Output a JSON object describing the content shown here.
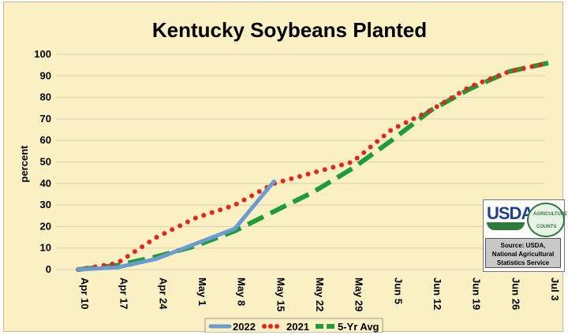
{
  "chart_data": {
    "type": "line",
    "title": "Kentucky Soybeans Planted",
    "xlabel": "",
    "ylabel": "percent",
    "ylim": [
      0,
      100
    ],
    "yticks": [
      0,
      10,
      20,
      30,
      40,
      50,
      60,
      70,
      80,
      90,
      100
    ],
    "xtick_labels": [
      "Apr 10",
      "Apr 17",
      "Apr 24",
      "May 1",
      "May 8",
      "May 15",
      "May 22",
      "May 29",
      "Jun 5",
      "Jun 12",
      "Jun 19",
      "Jun 26",
      "Jul 3"
    ],
    "grid": true,
    "legend": "bottom",
    "series": [
      {
        "name": "2022",
        "color": "#6a9bd1",
        "style": "solid",
        "x": [
          "Apr 10",
          "Apr 17",
          "Apr 24",
          "May 1",
          "May 8",
          "May 15"
        ],
        "values": [
          0,
          1,
          5,
          12,
          19,
          41
        ]
      },
      {
        "name": "2021",
        "color": "#e8231a",
        "style": "dotted",
        "x": [
          "Apr 10",
          "Apr 17",
          "Apr 24",
          "May 1",
          "May 8",
          "May 15",
          "May 22",
          "May 29",
          "Jun 5",
          "Jun 12",
          "Jun 19",
          "Jun 26",
          "Jul 3"
        ],
        "values": [
          0,
          3,
          15,
          24,
          30,
          40,
          45,
          50,
          65,
          74,
          85,
          92,
          96
        ]
      },
      {
        "name": "5-Yr Avg",
        "color": "#1e9c3a",
        "style": "dashed",
        "x": [
          "Apr 10",
          "Apr 17",
          "Apr 24",
          "May 1",
          "May 8",
          "May 15",
          "May 22",
          "May 29",
          "Jun 5",
          "Jun 12",
          "Jun 19",
          "Jun 26",
          "Jul 3"
        ],
        "values": [
          0,
          2,
          6,
          11,
          18,
          27,
          36,
          47,
          60,
          74,
          84,
          92,
          96
        ]
      }
    ]
  },
  "usda_logo": {
    "word": "USDA",
    "seal_text_top": "AGRICULTURE",
    "seal_text_bottom": "COUNTS"
  },
  "source": {
    "line1": "Source: USDA,",
    "line2": "National Agricultural",
    "line3": "Statistics Service"
  }
}
